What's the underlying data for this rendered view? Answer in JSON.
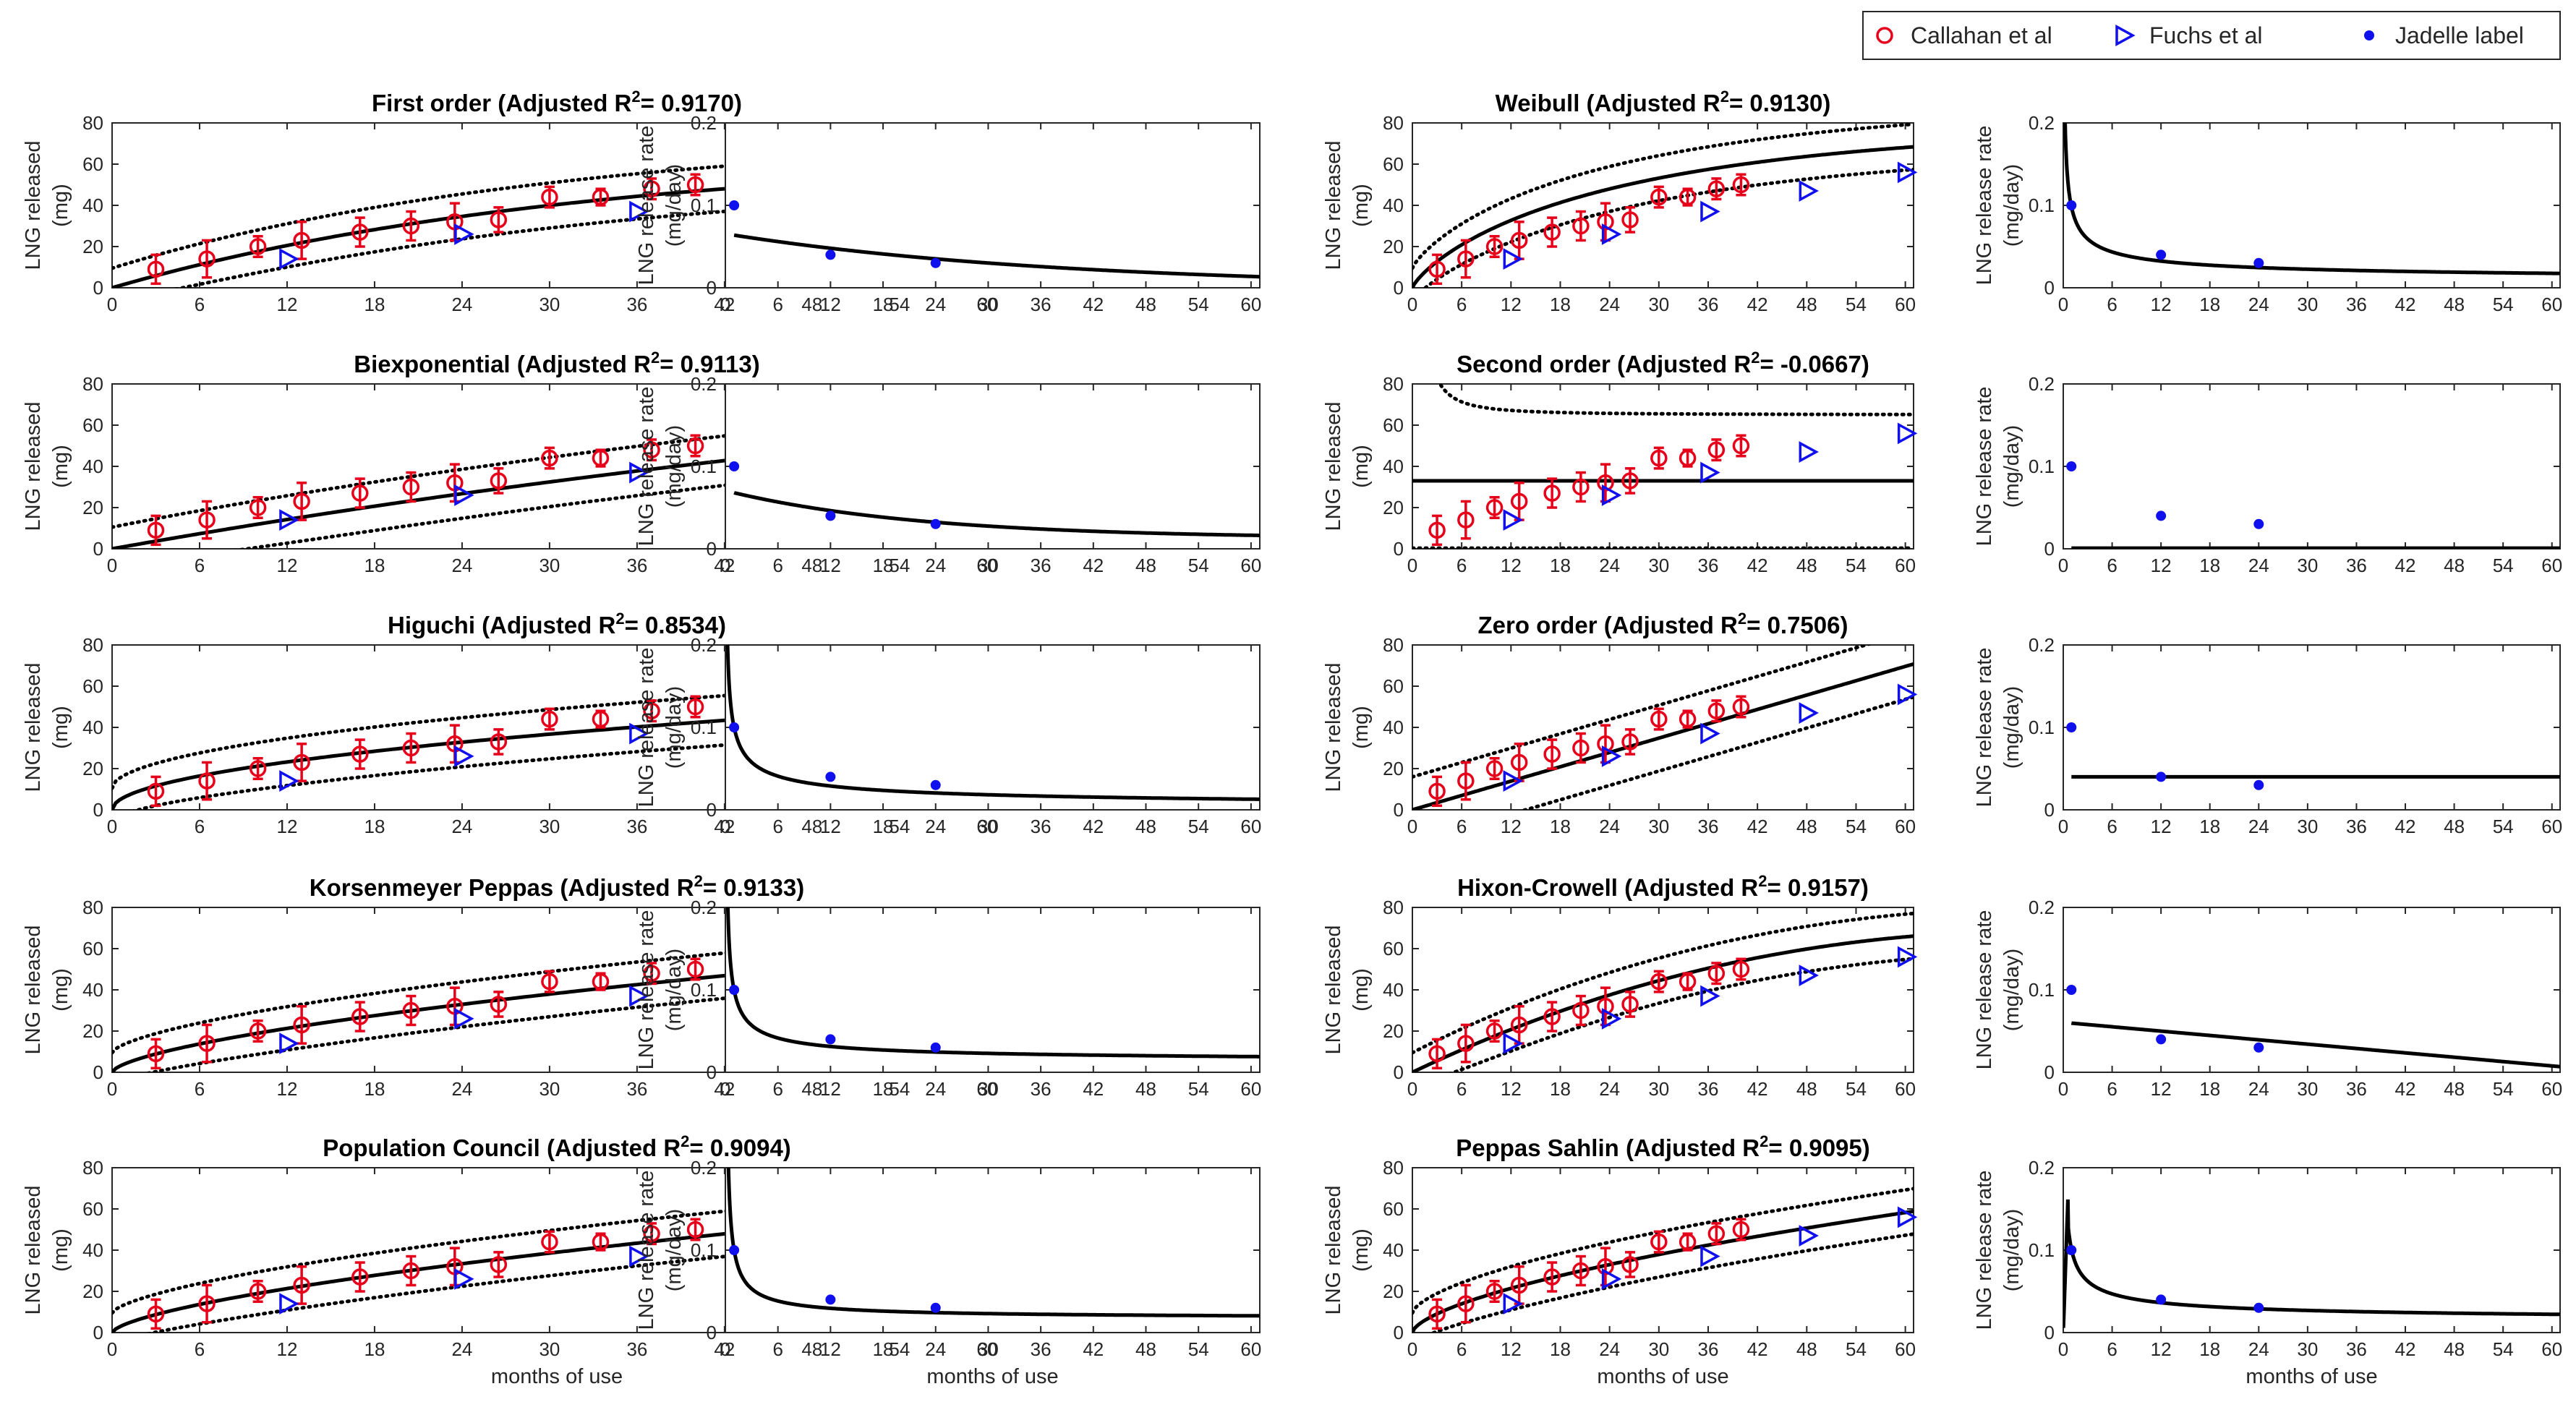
{
  "colors": {
    "callahan": "#e6001a",
    "fuchs": "#1010ee",
    "jadelle": "#1010ee",
    "fit": "#000000",
    "axis": "#262626"
  },
  "legend": {
    "position": "top-right",
    "entries": [
      "Callahan et al",
      "Fuchs et al",
      "Jadelle label"
    ]
  },
  "chart_data": {
    "type": "scatter",
    "shared": {
      "cumulative_axes": {
        "xlim": [
          0,
          61
        ],
        "ylim": [
          0,
          80
        ],
        "xticks": [
          "0",
          "6",
          "12",
          "18",
          "24",
          "30",
          "36",
          "42",
          "48",
          "54",
          "60"
        ],
        "yticks": [
          "0",
          "20",
          "40",
          "60",
          "80"
        ],
        "ylabel_line1": "LNG released",
        "ylabel_line2": "(mg)",
        "xlabel": "months of use"
      },
      "rate_axes": {
        "xlim": [
          0,
          61
        ],
        "ylim": [
          0,
          0.2
        ],
        "xticks": [
          "0",
          "6",
          "12",
          "18",
          "24",
          "30",
          "36",
          "42",
          "48",
          "54",
          "60"
        ],
        "yticks": [
          "0",
          "0.1",
          "0.2"
        ],
        "ylabel_line1": "LNG release rate",
        "ylabel_line2": "(mg/day)",
        "xlabel": "months of use"
      },
      "callahan": {
        "x": [
          3,
          6.5,
          10,
          13,
          17,
          20.5,
          23.5,
          26.5,
          30,
          33.5,
          37,
          40
        ],
        "y": [
          9,
          14,
          20,
          23,
          27,
          30,
          32,
          33,
          44,
          44,
          48,
          50
        ],
        "err": [
          7,
          9,
          5,
          9,
          7,
          7,
          9,
          6,
          5,
          4,
          5,
          5
        ]
      },
      "fuchs": {
        "x": [
          12,
          24,
          36,
          48,
          60
        ],
        "y": [
          14,
          26,
          37,
          47,
          56
        ]
      },
      "jadelle": {
        "x": [
          1,
          12,
          24
        ],
        "y": [
          0.1,
          0.04,
          0.03
        ]
      }
    },
    "models": [
      {
        "title_prefix": "First order (Adjusted R",
        "r2": "0.9170"
      },
      {
        "title_prefix": "Weibull (Adjusted R",
        "r2": "0.9130"
      },
      {
        "title_prefix": "Biexponential (Adjusted R",
        "r2": "0.9113"
      },
      {
        "title_prefix": "Second order (Adjusted R",
        "r2": "-0.0667"
      },
      {
        "title_prefix": "Higuchi (Adjusted R",
        "r2": "0.8534"
      },
      {
        "title_prefix": "Zero order (Adjusted R",
        "r2": "0.7506"
      },
      {
        "title_prefix": "Korsenmeyer Peppas (Adjusted R",
        "r2": "0.9133"
      },
      {
        "title_prefix": "Hixon-Crowell (Adjusted R",
        "r2": "0.9157"
      },
      {
        "title_prefix": "Population Council  (Adjusted R",
        "r2": "0.9094"
      },
      {
        "title_prefix": "Peppas Sahlin (Adjusted R",
        "r2": "0.9095"
      }
    ]
  }
}
